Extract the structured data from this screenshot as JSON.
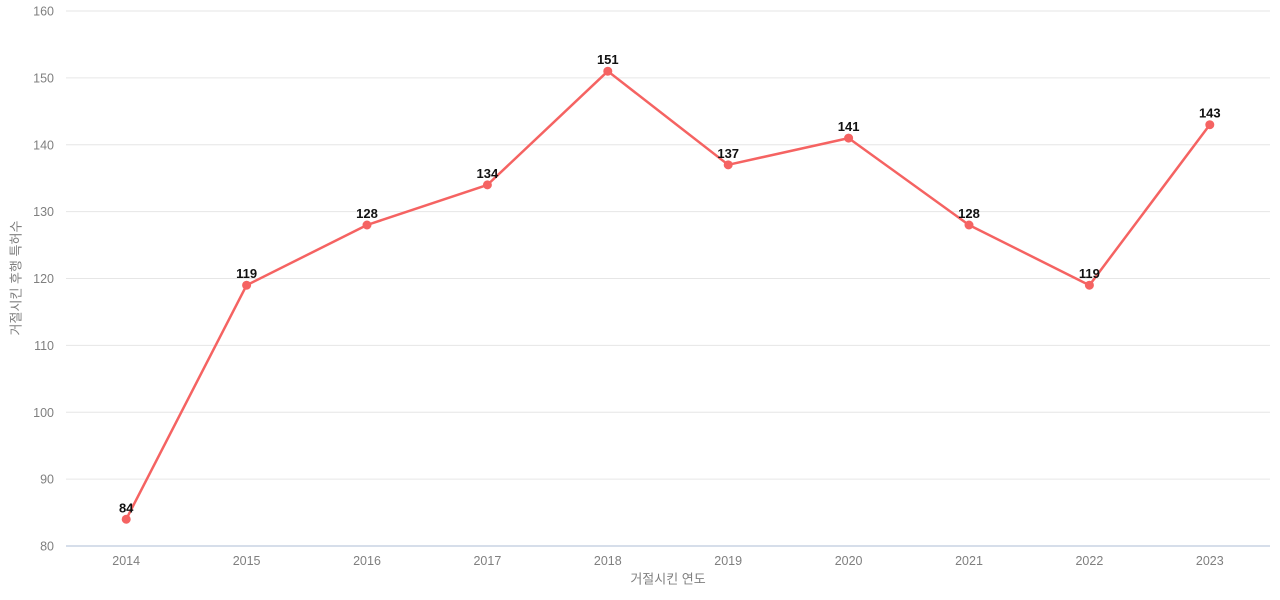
{
  "chart_data": {
    "type": "line",
    "title": "",
    "categories": [
      2014,
      2015,
      2016,
      2017,
      2018,
      2019,
      2020,
      2021,
      2022,
      2023
    ],
    "values": [
      84,
      119,
      128,
      134,
      151,
      137,
      141,
      128,
      119,
      143
    ],
    "point_labels": [
      "84",
      "119",
      "128",
      "134",
      "151",
      "137",
      "141",
      "128",
      "119",
      "143"
    ],
    "xlabel": "거절시킨 연도",
    "ylabel": "거절시킨 후행 특허수",
    "ylim": [
      80,
      160
    ],
    "ytick_step": 10,
    "yticks": [
      80,
      90,
      100,
      110,
      120,
      130,
      140,
      150,
      160
    ],
    "grid": true,
    "legend": "none",
    "colors": {
      "line": "#f56362",
      "marker": "#f56362",
      "grid": "#e6e6e6",
      "axis_line": "#c8d4e3",
      "tick_label": "#7f7f7f",
      "point_label": "#111111",
      "background": "#ffffff"
    }
  }
}
